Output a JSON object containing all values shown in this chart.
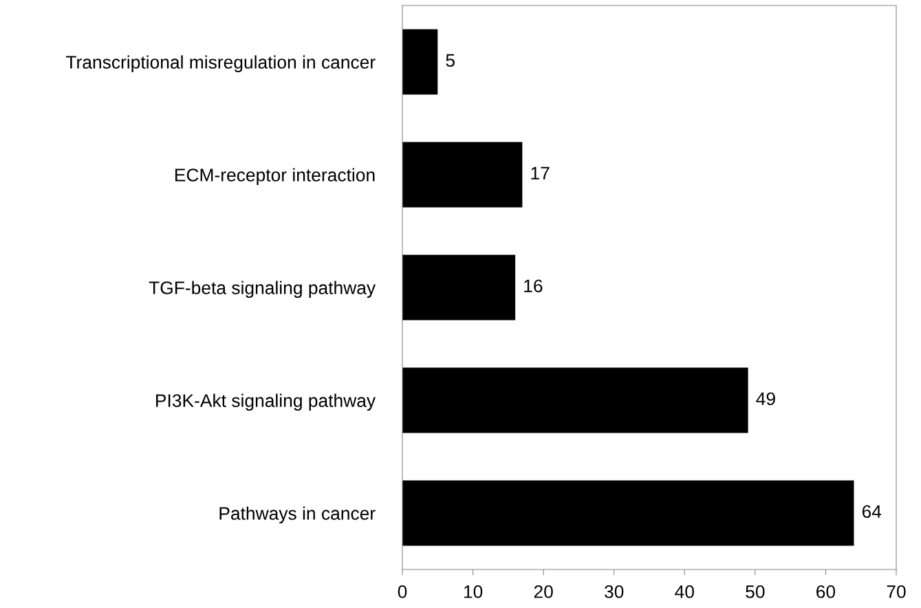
{
  "chart_data": {
    "type": "bar",
    "orientation": "horizontal",
    "categories": [
      "Transcriptional misregulation in cancer",
      "ECM-receptor interaction",
      "TGF-beta signaling pathway",
      "PI3K-Akt signaling pathway",
      "Pathways in cancer"
    ],
    "values": [
      5,
      17,
      16,
      49,
      64
    ],
    "color": "#000000",
    "xlim": [
      0,
      70
    ],
    "xticks": [
      0,
      10,
      20,
      30,
      40,
      50,
      60,
      70
    ],
    "data_labels": true,
    "grid": false
  }
}
